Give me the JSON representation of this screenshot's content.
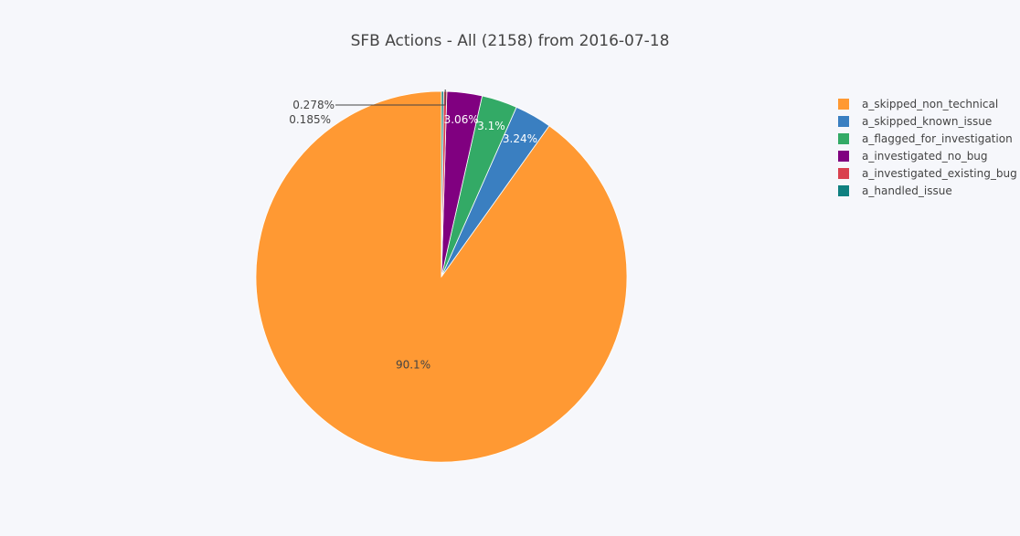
{
  "chart_data": {
    "type": "pie",
    "title": "SFB Actions - All (2158) from 2016-07-18",
    "slices": [
      {
        "label": "a_skipped_non_technical",
        "percent": 90.1,
        "percent_text": "90.1%",
        "color": "#ff9933"
      },
      {
        "label": "a_skipped_known_issue",
        "percent": 3.24,
        "percent_text": "3.24%",
        "color": "#3a7fc1"
      },
      {
        "label": "a_flagged_for_investigation",
        "percent": 3.1,
        "percent_text": "3.1%",
        "color": "#33aa66"
      },
      {
        "label": "a_investigated_no_bug",
        "percent": 3.06,
        "percent_text": "3.06%",
        "color": "#800080"
      },
      {
        "label": "a_investigated_existing_bug",
        "percent": 0.278,
        "percent_text": "0.278%",
        "color": "#d9414f"
      },
      {
        "label": "a_handled_issue",
        "percent": 0.185,
        "percent_text": "0.185%",
        "color": "#0f8080"
      }
    ],
    "direction": "counterclockwise",
    "start": "12 o'clock",
    "legend_position": "top-right"
  }
}
